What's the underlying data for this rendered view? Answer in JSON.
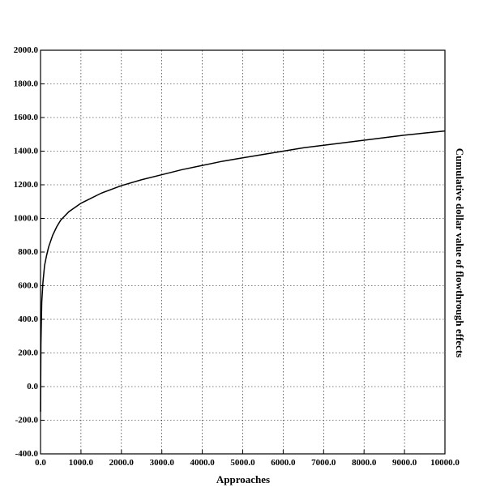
{
  "chart_data": {
    "type": "line",
    "xlabel": "Approaches",
    "ylabel": "Cumulative dollar value of flowthrough effects",
    "xlim": [
      0,
      10000
    ],
    "ylim": [
      -400,
      2000
    ],
    "x_ticks": [
      "0.0",
      "1000.0",
      "2000.0",
      "3000.0",
      "4000.0",
      "5000.0",
      "6000.0",
      "7000.0",
      "8000.0",
      "9000.0",
      "10000.0"
    ],
    "y_ticks": [
      "2000.0",
      "1800.0",
      "1600.0",
      "1400.0",
      "1200.0",
      "1000.0",
      "800.0",
      "600.0",
      "400.0",
      "200.0",
      "0.0",
      "-200.0",
      "-400.0"
    ],
    "grid": true,
    "series": [
      {
        "x": [
          1,
          10,
          30,
          60,
          100,
          150,
          200,
          300,
          400,
          500,
          700,
          1000,
          1500,
          2000,
          2500,
          3000,
          3500,
          4000,
          4500,
          5000,
          5500,
          6000,
          6500,
          7000,
          7500,
          8000,
          8500,
          9000,
          9500,
          10000
        ],
        "y": [
          -150,
          250,
          500,
          620,
          720,
          780,
          830,
          900,
          950,
          990,
          1040,
          1090,
          1150,
          1195,
          1230,
          1260,
          1290,
          1315,
          1340,
          1360,
          1380,
          1400,
          1420,
          1435,
          1450,
          1465,
          1480,
          1495,
          1508,
          1520
        ]
      }
    ]
  }
}
